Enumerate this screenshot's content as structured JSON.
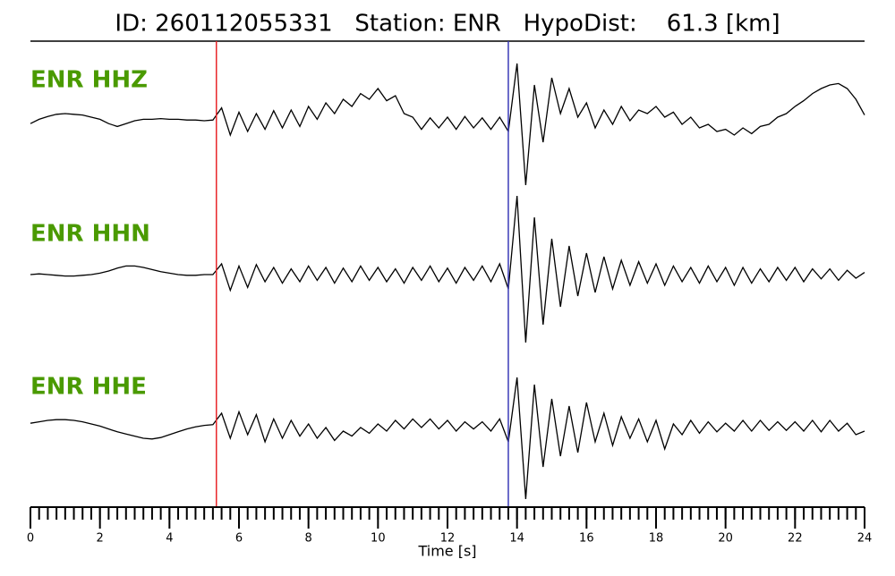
{
  "chart_data": {
    "type": "seismogram",
    "title": "ID: 260112055331   Station: ENR   HypoDist:    61.3 [km]",
    "xlabel": "Time [s]",
    "xlim": [
      0,
      24
    ],
    "xticks": [
      0,
      2,
      4,
      6,
      8,
      10,
      12,
      14,
      16,
      18,
      20,
      22,
      24
    ],
    "xminor": 0.25,
    "ylim": [
      -1.2,
      1.2
    ],
    "picks": [
      {
        "x": 5.35,
        "color": "#e8262a"
      },
      {
        "x": 13.75,
        "color": "#3a3ab8"
      }
    ],
    "label_color": "#4a9a00",
    "x": [
      0,
      0.25,
      0.5,
      0.75,
      1,
      1.25,
      1.5,
      1.75,
      2,
      2.25,
      2.5,
      2.75,
      3,
      3.25,
      3.5,
      3.75,
      4,
      4.25,
      4.5,
      4.75,
      5,
      5.25,
      5.5,
      5.75,
      6,
      6.25,
      6.5,
      6.75,
      7,
      7.25,
      7.5,
      7.75,
      8,
      8.25,
      8.5,
      8.75,
      9,
      9.25,
      9.5,
      9.75,
      10,
      10.25,
      10.5,
      10.75,
      11,
      11.25,
      11.5,
      11.75,
      12,
      12.25,
      12.5,
      12.75,
      13,
      13.25,
      13.5,
      13.75,
      14,
      14.25,
      14.5,
      14.75,
      15,
      15.25,
      15.5,
      15.75,
      16,
      16.25,
      16.5,
      16.75,
      17,
      17.25,
      17.5,
      17.75,
      18,
      18.25,
      18.5,
      18.75,
      19,
      19.25,
      19.5,
      19.75,
      20,
      20.25,
      20.5,
      20.75,
      21,
      21.25,
      21.5,
      21.75,
      22,
      22.25,
      22.5,
      22.75,
      23,
      23.25,
      23.5,
      23.75,
      24
    ],
    "series": [
      {
        "name": "ENR HHZ",
        "color": "#000000",
        "values": [
          -0.04,
          0.02,
          0.06,
          0.09,
          0.1,
          0.09,
          0.08,
          0.05,
          0.02,
          -0.04,
          -0.08,
          -0.04,
          0.0,
          0.02,
          0.02,
          0.03,
          0.02,
          0.02,
          0.01,
          0.01,
          0.0,
          0.01,
          0.18,
          -0.2,
          0.12,
          -0.15,
          0.1,
          -0.12,
          0.14,
          -0.1,
          0.15,
          -0.08,
          0.2,
          0.02,
          0.25,
          0.1,
          0.3,
          0.2,
          0.38,
          0.3,
          0.45,
          0.28,
          0.35,
          0.1,
          0.05,
          -0.12,
          0.04,
          -0.1,
          0.05,
          -0.12,
          0.06,
          -0.1,
          0.04,
          -0.12,
          0.05,
          -0.15,
          0.8,
          -0.9,
          0.5,
          -0.3,
          0.6,
          0.1,
          0.45,
          0.05,
          0.25,
          -0.1,
          0.15,
          -0.05,
          0.2,
          0.0,
          0.15,
          0.1,
          0.2,
          0.05,
          0.12,
          -0.05,
          0.05,
          -0.1,
          -0.05,
          -0.15,
          -0.12,
          -0.2,
          -0.1,
          -0.18,
          -0.08,
          -0.05,
          0.05,
          0.1,
          0.2,
          0.28,
          0.38,
          0.45,
          0.5,
          0.52,
          0.45,
          0.3,
          0.08
        ]
      },
      {
        "name": "ENR HHN",
        "color": "#000000",
        "values": [
          0.0,
          0.01,
          0.0,
          -0.01,
          -0.02,
          -0.02,
          -0.01,
          0.0,
          0.02,
          0.05,
          0.09,
          0.12,
          0.12,
          0.1,
          0.07,
          0.04,
          0.02,
          0.0,
          -0.01,
          -0.01,
          0.0,
          0.0,
          0.15,
          -0.22,
          0.12,
          -0.18,
          0.14,
          -0.1,
          0.1,
          -0.12,
          0.08,
          -0.1,
          0.12,
          -0.08,
          0.1,
          -0.12,
          0.09,
          -0.1,
          0.12,
          -0.08,
          0.1,
          -0.1,
          0.08,
          -0.12,
          0.1,
          -0.08,
          0.12,
          -0.1,
          0.09,
          -0.12,
          0.1,
          -0.08,
          0.12,
          -0.1,
          0.15,
          -0.2,
          1.1,
          -0.95,
          0.8,
          -0.7,
          0.5,
          -0.45,
          0.4,
          -0.3,
          0.3,
          -0.25,
          0.25,
          -0.2,
          0.2,
          -0.15,
          0.18,
          -0.12,
          0.15,
          -0.15,
          0.12,
          -0.1,
          0.1,
          -0.12,
          0.12,
          -0.1,
          0.1,
          -0.15,
          0.1,
          -0.12,
          0.08,
          -0.1,
          0.1,
          -0.08,
          0.1,
          -0.1,
          0.08,
          -0.06,
          0.08,
          -0.08,
          0.06,
          -0.05,
          0.03
        ]
      },
      {
        "name": "ENR HHE",
        "color": "#000000",
        "values": [
          0.06,
          0.08,
          0.1,
          0.11,
          0.11,
          0.1,
          0.08,
          0.05,
          0.02,
          -0.02,
          -0.06,
          -0.09,
          -0.12,
          -0.15,
          -0.16,
          -0.14,
          -0.1,
          -0.06,
          -0.02,
          0.01,
          0.03,
          0.04,
          0.2,
          -0.15,
          0.22,
          -0.1,
          0.18,
          -0.2,
          0.12,
          -0.15,
          0.1,
          -0.12,
          0.05,
          -0.15,
          0.0,
          -0.18,
          -0.05,
          -0.12,
          0.0,
          -0.08,
          0.05,
          -0.05,
          0.1,
          -0.02,
          0.12,
          0.0,
          0.12,
          -0.02,
          0.1,
          -0.05,
          0.08,
          -0.02,
          0.08,
          -0.05,
          0.12,
          -0.2,
          0.7,
          -1.0,
          0.6,
          -0.55,
          0.4,
          -0.4,
          0.3,
          -0.35,
          0.35,
          -0.2,
          0.2,
          -0.25,
          0.15,
          -0.15,
          0.12,
          -0.2,
          0.1,
          -0.3,
          0.05,
          -0.1,
          0.1,
          -0.08,
          0.08,
          -0.06,
          0.06,
          -0.05,
          0.1,
          -0.05,
          0.1,
          -0.04,
          0.08,
          -0.04,
          0.08,
          -0.05,
          0.1,
          -0.06,
          0.1,
          -0.05,
          0.06,
          -0.1,
          -0.05
        ]
      }
    ]
  }
}
